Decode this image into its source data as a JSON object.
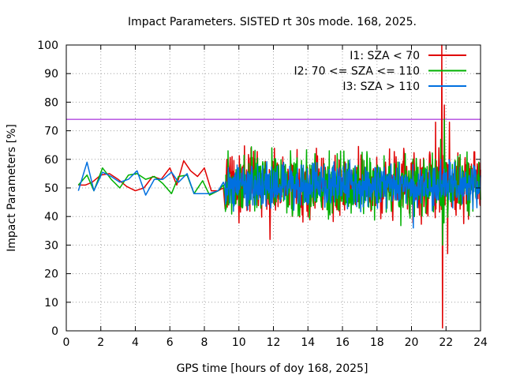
{
  "chart_data": {
    "type": "line",
    "title": "Impact Parameters. SISTED rt 30s mode. 168, 2025.",
    "xlabel": "GPS time [hours of doy 168, 2025]",
    "ylabel": "Impact Parameters [%]",
    "xlim": [
      0,
      24
    ],
    "ylim": [
      0,
      100
    ],
    "xticks": [
      0,
      2,
      4,
      6,
      8,
      10,
      12,
      14,
      16,
      18,
      20,
      22,
      24
    ],
    "yticks": [
      0,
      10,
      20,
      30,
      40,
      50,
      60,
      70,
      80,
      90,
      100
    ],
    "grid": true,
    "legend_position": "top-right",
    "reference_line": {
      "y": 74,
      "color": "#9400d3"
    },
    "series": [
      {
        "name": "I1: SZA < 70",
        "color": "#e00000",
        "sparse": [
          [
            0.7,
            51
          ],
          [
            1.1,
            51
          ],
          [
            1.5,
            52
          ],
          [
            2.0,
            54.5
          ],
          [
            2.5,
            55
          ],
          [
            3.0,
            53
          ],
          [
            3.5,
            50.5
          ],
          [
            4.0,
            49
          ],
          [
            4.5,
            50
          ],
          [
            5.0,
            54
          ],
          [
            5.5,
            53
          ],
          [
            6.0,
            57
          ],
          [
            6.4,
            51
          ],
          [
            6.8,
            59.5
          ],
          [
            7.2,
            56
          ],
          [
            7.6,
            54
          ],
          [
            8.0,
            57
          ],
          [
            8.4,
            49
          ],
          [
            8.8,
            49
          ],
          [
            9.1,
            50
          ]
        ],
        "dense": {
          "start": 9.2,
          "end": 24,
          "count": 700,
          "mean": 51,
          "spread": 5.5,
          "spikes": [
            [
              9.3,
              60
            ],
            [
              10.7,
              64
            ],
            [
              11.8,
              32
            ],
            [
              21.4,
              73
            ],
            [
              21.75,
              100
            ],
            [
              21.8,
              1
            ],
            [
              21.9,
              79
            ],
            [
              22.1,
              27
            ],
            [
              22.2,
              73
            ],
            [
              20.1,
              60
            ]
          ]
        }
      },
      {
        "name": "I2: 70 <= SZA <= 110",
        "color": "#00b000",
        "sparse": [
          [
            0.7,
            51
          ],
          [
            1.2,
            54.5
          ],
          [
            1.6,
            49
          ],
          [
            2.1,
            57
          ],
          [
            2.6,
            53
          ],
          [
            3.1,
            50
          ],
          [
            3.6,
            54.5
          ],
          [
            4.1,
            55
          ],
          [
            4.6,
            53
          ],
          [
            5.1,
            54
          ],
          [
            5.6,
            51.5
          ],
          [
            6.1,
            48
          ],
          [
            6.5,
            54
          ],
          [
            7.0,
            54.5
          ],
          [
            7.4,
            48
          ],
          [
            7.9,
            52.5
          ],
          [
            8.3,
            47.5
          ],
          [
            8.8,
            49
          ],
          [
            9.1,
            51
          ]
        ],
        "dense": {
          "start": 9.2,
          "end": 24,
          "count": 700,
          "mean": 51,
          "spread": 5.0,
          "spikes": [
            [
              10.2,
              43
            ],
            [
              11.5,
              59
            ],
            [
              11.9,
              64
            ],
            [
              13.0,
              63
            ],
            [
              14.4,
              62
            ],
            [
              15.7,
              62
            ],
            [
              21.7,
              67
            ],
            [
              21.8,
              30
            ],
            [
              21.9,
              74
            ],
            [
              23.9,
              59
            ]
          ]
        }
      },
      {
        "name": "I3: SZA > 110",
        "color": "#0070e0",
        "sparse": [
          [
            0.7,
            49
          ],
          [
            1.2,
            59
          ],
          [
            1.6,
            49
          ],
          [
            2.1,
            55.5
          ],
          [
            2.6,
            54
          ],
          [
            3.1,
            52
          ],
          [
            3.6,
            53
          ],
          [
            4.1,
            56
          ],
          [
            4.6,
            47.5
          ],
          [
            5.1,
            53
          ],
          [
            5.6,
            53
          ],
          [
            6.1,
            55.5
          ],
          [
            6.5,
            52
          ],
          [
            7.0,
            55
          ],
          [
            7.4,
            48
          ],
          [
            7.9,
            48
          ],
          [
            8.3,
            48
          ],
          [
            8.8,
            49
          ],
          [
            9.1,
            52
          ]
        ],
        "dense": {
          "start": 9.2,
          "end": 24,
          "count": 700,
          "mean": 51,
          "spread": 3.5,
          "spikes": [
            [
              9.9,
              58
            ],
            [
              10.8,
              44
            ],
            [
              12.5,
              58
            ],
            [
              13.6,
              58
            ],
            [
              19.3,
              59
            ],
            [
              20.1,
              36
            ],
            [
              21.2,
              42
            ],
            [
              21.7,
              60
            ],
            [
              22.5,
              59
            ],
            [
              23.6,
              58
            ]
          ]
        }
      }
    ]
  }
}
